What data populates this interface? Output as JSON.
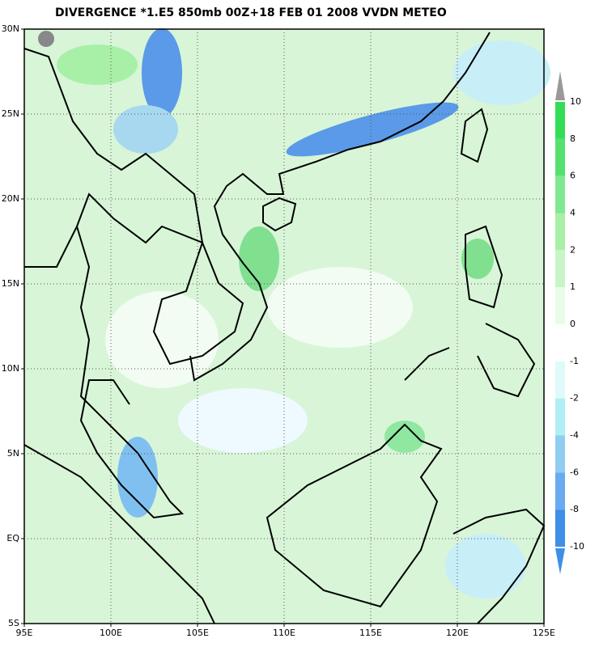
{
  "title": "DIVERGENCE *1.E5 850mb 00Z+18 FEB 01 2008 VVDN METEO",
  "map": {
    "lat_labels": [
      "30N",
      "25N",
      "20N",
      "15N",
      "10N",
      "5N",
      "EQ",
      "5S"
    ],
    "lon_labels": [
      "95E",
      "100E",
      "105E",
      "110E",
      "115E",
      "120E",
      "125E"
    ]
  },
  "colorbar": {
    "labels": [
      "10",
      "8",
      "6",
      "4",
      "2",
      "1",
      "0",
      "-1",
      "-2",
      "-4",
      "-6",
      "-8",
      "-10"
    ]
  }
}
